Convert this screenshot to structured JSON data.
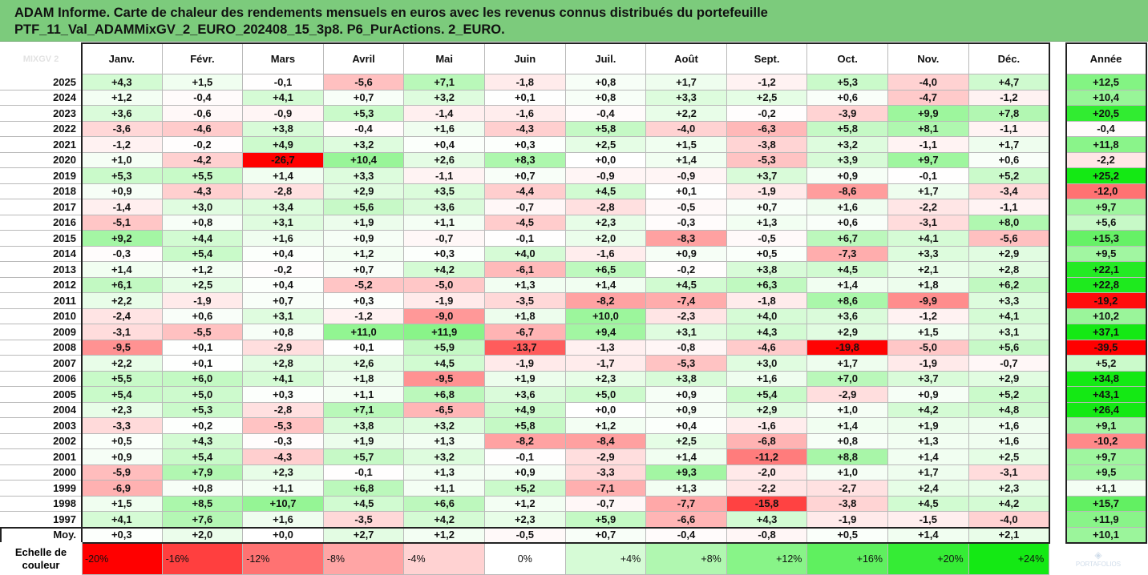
{
  "title": {
    "line1": "ADAM Informe. Carte de chaleur des rendements mensuels en euros avec les revenus connus distribués du portefeuille",
    "line2": "PTF_11_Val_ADAMMixGV_2_EURO_202408_15_3p8. P6_PurActions. 2_EURO."
  },
  "corner_label": "MIXGV 2",
  "logo_text": "PORTAFOLIOS",
  "chart_data": {
    "type": "heatmap",
    "columns": [
      "Janv.",
      "Févr.",
      "Mars",
      "Avril",
      "Mai",
      "Juin",
      "Juil.",
      "Août",
      "Sept.",
      "Oct.",
      "Nov.",
      "Déc."
    ],
    "annual_label": "Année",
    "rows": [
      {
        "year": "2025",
        "months": [
          4.3,
          1.5,
          -0.1,
          -5.6,
          7.1,
          -1.8,
          0.8,
          1.7,
          -1.2,
          5.3,
          -4.0,
          4.7
        ],
        "annual": 12.5
      },
      {
        "year": "2024",
        "months": [
          1.2,
          -0.4,
          4.1,
          0.7,
          3.2,
          0.1,
          0.8,
          3.3,
          2.5,
          0.6,
          -4.7,
          -1.2
        ],
        "annual": 10.4
      },
      {
        "year": "2023",
        "months": [
          3.6,
          -0.6,
          -0.9,
          5.3,
          -1.4,
          -1.6,
          -0.4,
          2.2,
          -0.2,
          -3.9,
          9.9,
          7.8
        ],
        "annual": 20.5
      },
      {
        "year": "2022",
        "months": [
          -3.6,
          -4.6,
          3.8,
          -0.4,
          1.6,
          -4.3,
          5.8,
          -4.0,
          -6.3,
          5.8,
          8.1,
          -1.1
        ],
        "annual": -0.4
      },
      {
        "year": "2021",
        "months": [
          -1.2,
          -0.2,
          4.9,
          3.2,
          0.4,
          0.3,
          2.5,
          1.5,
          -3.8,
          3.2,
          -1.1,
          1.7
        ],
        "annual": 11.8
      },
      {
        "year": "2020",
        "months": [
          1.0,
          -4.2,
          -26.7,
          10.4,
          2.6,
          8.3,
          0.0,
          1.4,
          -5.3,
          3.9,
          9.7,
          0.6
        ],
        "annual": -2.2
      },
      {
        "year": "2019",
        "months": [
          5.3,
          5.5,
          1.4,
          3.3,
          -1.1,
          0.7,
          -0.9,
          -0.9,
          3.7,
          0.9,
          -0.1,
          5.2
        ],
        "annual": 25.2
      },
      {
        "year": "2018",
        "months": [
          0.9,
          -4.3,
          -2.8,
          2.9,
          3.5,
          -4.4,
          4.5,
          0.1,
          -1.9,
          -8.6,
          1.7,
          -3.4
        ],
        "annual": -12.0
      },
      {
        "year": "2017",
        "months": [
          -1.4,
          3.0,
          3.4,
          5.6,
          3.6,
          -0.7,
          -2.8,
          -0.5,
          0.7,
          1.6,
          -2.2,
          -1.1
        ],
        "annual": 9.7
      },
      {
        "year": "2016",
        "months": [
          -5.1,
          0.8,
          3.1,
          1.9,
          1.1,
          -4.5,
          2.3,
          -0.3,
          1.3,
          0.6,
          -3.1,
          8.0
        ],
        "annual": 5.6
      },
      {
        "year": "2015",
        "months": [
          9.2,
          4.4,
          1.6,
          0.9,
          -0.7,
          -0.1,
          2.0,
          -8.3,
          -0.5,
          6.7,
          4.1,
          -5.6
        ],
        "annual": 15.3
      },
      {
        "year": "2014",
        "months": [
          -0.3,
          5.4,
          0.4,
          1.2,
          0.3,
          4.0,
          -1.6,
          0.9,
          0.5,
          -7.3,
          3.3,
          2.9
        ],
        "annual": 9.5
      },
      {
        "year": "2013",
        "months": [
          1.4,
          1.2,
          -0.2,
          0.7,
          4.2,
          -6.1,
          6.5,
          -0.2,
          3.8,
          4.5,
          2.1,
          2.8
        ],
        "annual": 22.1
      },
      {
        "year": "2012",
        "months": [
          6.1,
          2.5,
          0.4,
          -5.2,
          -5.0,
          1.3,
          1.4,
          4.5,
          6.3,
          1.4,
          1.8,
          6.2
        ],
        "annual": 22.8
      },
      {
        "year": "2011",
        "months": [
          2.2,
          -1.9,
          0.7,
          0.3,
          -1.9,
          -3.5,
          -8.2,
          -7.4,
          -1.8,
          8.6,
          -9.9,
          3.3
        ],
        "annual": -19.2
      },
      {
        "year": "2010",
        "months": [
          -2.4,
          0.6,
          3.1,
          -1.2,
          -9.0,
          1.8,
          10.0,
          -2.3,
          4.0,
          3.6,
          -1.2,
          4.1
        ],
        "annual": 10.2
      },
      {
        "year": "2009",
        "months": [
          -3.1,
          -5.5,
          0.8,
          11.0,
          11.9,
          -6.7,
          9.4,
          3.1,
          4.3,
          2.9,
          1.5,
          3.1
        ],
        "annual": 37.1
      },
      {
        "year": "2008",
        "months": [
          -9.5,
          0.1,
          -2.9,
          0.1,
          5.9,
          -13.7,
          -1.3,
          -0.8,
          -4.6,
          -19.8,
          -5.0,
          5.6
        ],
        "annual": -39.5
      },
      {
        "year": "2007",
        "months": [
          2.2,
          0.1,
          2.8,
          2.6,
          4.5,
          -1.9,
          -1.7,
          -5.3,
          3.0,
          1.7,
          -1.9,
          -0.7
        ],
        "annual": 5.2
      },
      {
        "year": "2006",
        "months": [
          5.5,
          6.0,
          4.1,
          1.8,
          -9.5,
          1.9,
          2.3,
          3.8,
          1.6,
          7.0,
          3.7,
          2.9
        ],
        "annual": 34.8
      },
      {
        "year": "2005",
        "months": [
          5.4,
          5.0,
          0.3,
          1.1,
          6.8,
          3.6,
          5.0,
          0.9,
          5.4,
          -2.9,
          0.9,
          5.2
        ],
        "annual": 43.1
      },
      {
        "year": "2004",
        "months": [
          2.3,
          5.3,
          -2.8,
          7.1,
          -6.5,
          4.9,
          0.0,
          0.9,
          2.9,
          1.0,
          4.2,
          4.8
        ],
        "annual": 26.4
      },
      {
        "year": "2003",
        "months": [
          -3.3,
          0.2,
          -5.3,
          3.8,
          3.2,
          5.8,
          1.2,
          0.4,
          -1.6,
          1.4,
          1.9,
          1.6
        ],
        "annual": 9.1
      },
      {
        "year": "2002",
        "months": [
          0.5,
          4.3,
          -0.3,
          1.9,
          1.3,
          -8.2,
          -8.4,
          2.5,
          -6.8,
          0.8,
          1.3,
          1.6
        ],
        "annual": -10.2
      },
      {
        "year": "2001",
        "months": [
          0.9,
          5.4,
          -4.3,
          5.7,
          3.2,
          -0.1,
          -2.9,
          1.4,
          -11.2,
          8.8,
          1.4,
          2.5
        ],
        "annual": 9.7
      },
      {
        "year": "2000",
        "months": [
          -5.9,
          7.9,
          2.3,
          -0.1,
          1.3,
          0.9,
          -3.3,
          9.3,
          -2.0,
          1.0,
          1.7,
          -3.1
        ],
        "annual": 9.5
      },
      {
        "year": "1999",
        "months": [
          -6.9,
          0.8,
          1.1,
          6.8,
          1.1,
          5.2,
          -7.1,
          1.3,
          -2.2,
          -2.7,
          2.4,
          2.3
        ],
        "annual": 1.1
      },
      {
        "year": "1998",
        "months": [
          1.5,
          8.5,
          10.7,
          4.5,
          6.6,
          1.2,
          -0.7,
          -7.7,
          -15.8,
          -3.8,
          4.5,
          4.2
        ],
        "annual": 15.7
      },
      {
        "year": "1997",
        "months": [
          4.1,
          7.6,
          1.6,
          -3.5,
          4.2,
          2.3,
          5.9,
          -6.6,
          4.3,
          -1.9,
          -1.5,
          -4.0
        ],
        "annual": 11.9
      }
    ],
    "average": {
      "label": "Moy.",
      "months": [
        0.3,
        2.0,
        0.0,
        2.7,
        1.2,
        -0.5,
        0.7,
        -0.4,
        -0.8,
        0.5,
        1.4,
        2.1
      ],
      "annual": 10.1
    },
    "color_scale": {
      "label": "Echelle de couleur",
      "steps": [
        {
          "label": "-20%",
          "value": -20,
          "color": "#ff0000"
        },
        {
          "label": "-16%",
          "value": -16,
          "color": "#ff3f3f"
        },
        {
          "label": "-12%",
          "value": -12,
          "color": "#ff7272"
        },
        {
          "label": "-8%",
          "value": -8,
          "color": "#ffa5a5"
        },
        {
          "label": "-4%",
          "value": -4,
          "color": "#ffd2d2"
        },
        {
          "label": "0%",
          "value": 0,
          "color": "#ffffff"
        },
        {
          "label": "+4%",
          "value": 4,
          "color": "#d6fbd6"
        },
        {
          "label": "+8%",
          "value": 8,
          "color": "#b0f7b0"
        },
        {
          "label": "+12%",
          "value": 12,
          "color": "#88f488"
        },
        {
          "label": "+16%",
          "value": 16,
          "color": "#5ff05f"
        },
        {
          "label": "+20%",
          "value": 20,
          "color": "#35ec35"
        },
        {
          "label": "+24%",
          "value": 24,
          "color": "#14e914"
        }
      ]
    }
  }
}
